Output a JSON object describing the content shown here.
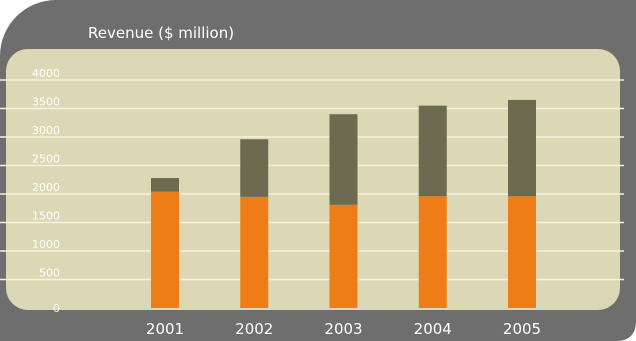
{
  "chart_data": {
    "type": "bar",
    "stacked": true,
    "title": "Revenue ($ million)",
    "categories": [
      "2001",
      "2002",
      "2003",
      "2004",
      "2005"
    ],
    "series": [
      {
        "values": [
          2040,
          1950,
          1810,
          1960,
          1960
        ]
      },
      {
        "values": [
          240,
          1010,
          1590,
          1590,
          1690
        ]
      }
    ],
    "ylim": [
      0,
      4000
    ],
    "yticks": [
      0,
      500,
      1000,
      1500,
      2000,
      2500,
      3000,
      3500,
      4000
    ],
    "grid": true,
    "legend": "none",
    "colors": {
      "frame": "#6e6e6e",
      "plot_background": "#dcd8b6",
      "gridline": "#f4f1de",
      "series_bottom": "#ef7d17",
      "series_top": "#6c6b50",
      "text": "#ffffff"
    }
  }
}
